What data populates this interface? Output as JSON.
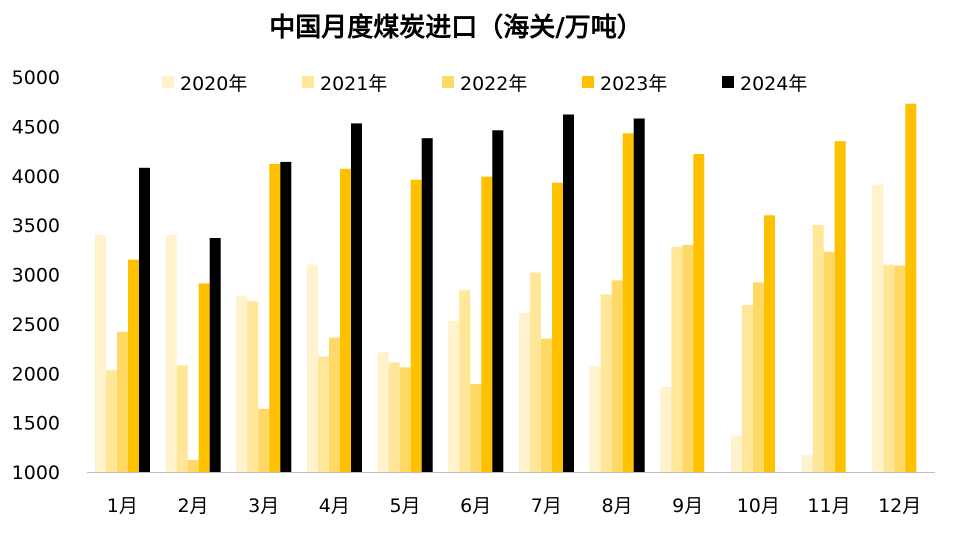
{
  "chart_data": {
    "type": "bar",
    "title": "中国月度煤炭进口（海关/万吨）",
    "xlabel": "",
    "ylabel": "",
    "ylim": [
      1000,
      5000
    ],
    "yticks": [
      "1000",
      "1500",
      "2000",
      "2500",
      "3000",
      "3500",
      "4000",
      "4500",
      "5000"
    ],
    "grid": false,
    "legend_position": "top",
    "categories": [
      "1月",
      "2月",
      "3月",
      "4月",
      "5月",
      "6月",
      "7月",
      "8月",
      "9月",
      "10月",
      "11月",
      "12月"
    ],
    "series": [
      {
        "name": "2020年",
        "color": "#fff2cc",
        "values": [
          3400,
          3400,
          2780,
          3100,
          2210,
          2530,
          2610,
          2070,
          1860,
          1370,
          1170,
          3910
        ]
      },
      {
        "name": "2021年",
        "color": "#ffe699",
        "values": [
          2030,
          2080,
          2730,
          2170,
          2110,
          2840,
          3020,
          2800,
          3280,
          2690,
          3500,
          3100
        ]
      },
      {
        "name": "2022年",
        "color": "#ffd966",
        "values": [
          2420,
          1120,
          1640,
          2360,
          2060,
          1890,
          2350,
          2940,
          3300,
          2920,
          3230,
          3090
        ]
      },
      {
        "name": "2023年",
        "color": "#ffc000",
        "values": [
          3150,
          2910,
          4120,
          4070,
          3960,
          3990,
          3930,
          4430,
          4220,
          3600,
          4350,
          4730
        ]
      },
      {
        "name": "2024年",
        "color": "#000000",
        "values": [
          4080,
          3370,
          4140,
          4530,
          4380,
          4460,
          4620,
          4580,
          null,
          null,
          null,
          null
        ]
      }
    ]
  }
}
